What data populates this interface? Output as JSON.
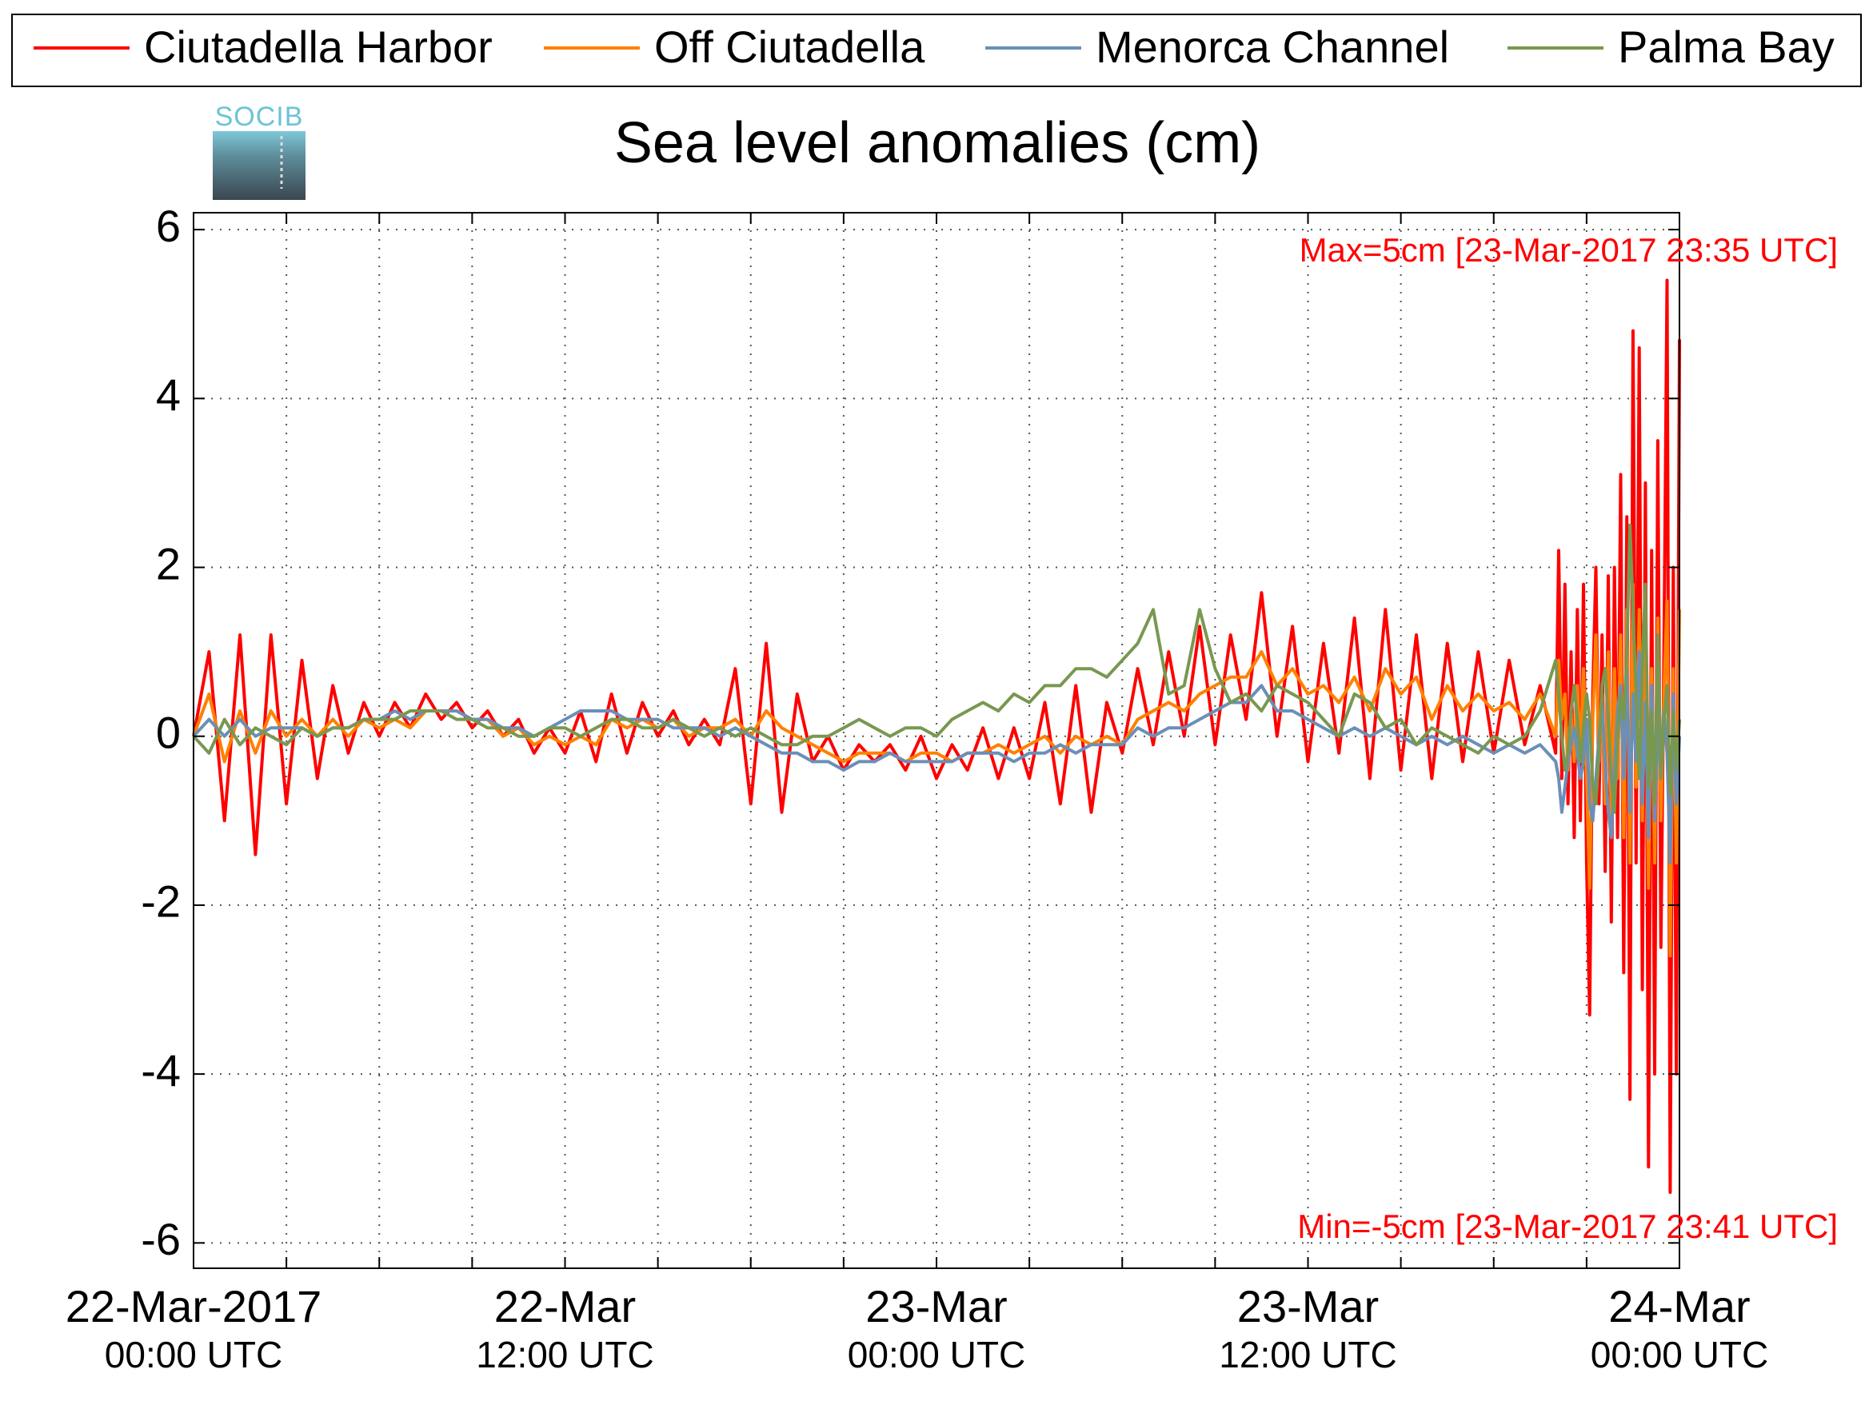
{
  "chart_data": {
    "type": "line",
    "title": "Sea level anomalies (cm)",
    "logo_text": "SOCIB",
    "annotations": [
      {
        "text": "Max=5cm [23-Mar-2017 23:35 UTC]",
        "color": "#ff0000",
        "corner": "top-right"
      },
      {
        "text": "Min=-5cm [23-Mar-2017 23:41 UTC]",
        "color": "#ff0000",
        "corner": "bottom-right"
      }
    ],
    "xlim": [
      0,
      48
    ],
    "ylim": [
      -6.3,
      6.2
    ],
    "xticks": [
      {
        "value": 0,
        "label": "22-Mar-2017",
        "sublabel": "00:00 UTC"
      },
      3,
      6,
      9,
      {
        "value": 12,
        "label": "22-Mar",
        "sublabel": "12:00 UTC"
      },
      15,
      18,
      21,
      {
        "value": 24,
        "label": "23-Mar",
        "sublabel": "00:00 UTC"
      },
      27,
      30,
      33,
      {
        "value": 36,
        "label": "23-Mar",
        "sublabel": "12:00 UTC"
      },
      39,
      42,
      45,
      {
        "value": 48,
        "label": "24-Mar",
        "sublabel": "00:00 UTC"
      }
    ],
    "yticks": [
      -6,
      -4,
      -2,
      0,
      2,
      4,
      6
    ],
    "grid": true,
    "legend": "top",
    "x": [
      0,
      0.5,
      1,
      1.5,
      2,
      2.5,
      3,
      3.5,
      4,
      4.5,
      5,
      5.5,
      6,
      6.5,
      7,
      7.5,
      8,
      8.5,
      9,
      9.5,
      10,
      10.5,
      11,
      11.5,
      12,
      12.5,
      13,
      13.5,
      14,
      14.5,
      15,
      15.5,
      16,
      16.5,
      17,
      17.5,
      18,
      18.5,
      19,
      19.5,
      20,
      20.5,
      21,
      21.5,
      22,
      22.5,
      23,
      23.5,
      24,
      24.5,
      25,
      25.5,
      26,
      26.5,
      27,
      27.5,
      28,
      28.5,
      29,
      29.5,
      30,
      30.5,
      31,
      31.5,
      32,
      32.5,
      33,
      33.5,
      34,
      34.5,
      35,
      35.5,
      36,
      36.5,
      37,
      37.5,
      38,
      38.5,
      39,
      39.5,
      40,
      40.5,
      41,
      41.5,
      42,
      42.5,
      43,
      43.5,
      44,
      44.1,
      44.2,
      44.3,
      44.4,
      44.5,
      44.6,
      44.7,
      44.8,
      44.9,
      45,
      45.1,
      45.2,
      45.3,
      45.4,
      45.5,
      45.6,
      45.7,
      45.8,
      45.9,
      46,
      46.1,
      46.2,
      46.3,
      46.4,
      46.5,
      46.6,
      46.7,
      46.8,
      46.9,
      47,
      47.1,
      47.2,
      47.3,
      47.4,
      47.5,
      47.6,
      47.7,
      47.8,
      47.9,
      48
    ],
    "series": [
      {
        "name": "Ciutadella Harbor",
        "color": "#ff0000",
        "values": [
          0,
          1.0,
          -1.0,
          1.2,
          -1.4,
          1.2,
          -0.8,
          0.9,
          -0.5,
          0.6,
          -0.2,
          0.4,
          0.0,
          0.4,
          0.1,
          0.5,
          0.2,
          0.4,
          0.1,
          0.3,
          0.0,
          0.2,
          -0.2,
          0.1,
          -0.2,
          0.3,
          -0.3,
          0.5,
          -0.2,
          0.4,
          0.0,
          0.3,
          -0.1,
          0.2,
          -0.1,
          0.8,
          -0.8,
          1.1,
          -0.9,
          0.5,
          -0.3,
          0.0,
          -0.4,
          -0.1,
          -0.3,
          -0.1,
          -0.4,
          0.0,
          -0.5,
          -0.1,
          -0.4,
          0.1,
          -0.5,
          0.1,
          -0.5,
          0.4,
          -0.8,
          0.6,
          -0.9,
          0.4,
          -0.2,
          0.8,
          -0.1,
          1.0,
          0.0,
          1.3,
          -0.1,
          1.2,
          0.2,
          1.7,
          0.0,
          1.3,
          -0.3,
          1.1,
          -0.2,
          1.4,
          -0.5,
          1.5,
          -0.4,
          1.2,
          -0.5,
          1.1,
          -0.3,
          1.0,
          -0.2,
          0.9,
          -0.1,
          0.6,
          -0.2,
          2.2,
          -0.5,
          1.8,
          -0.8,
          1.0,
          -1.2,
          1.5,
          -1.0,
          1.8,
          -1.5,
          -3.3,
          0.5,
          2.0,
          -0.8,
          1.2,
          -1.6,
          1.9,
          -2.2,
          2.0,
          -1.2,
          3.1,
          -2.8,
          2.6,
          -4.3,
          4.8,
          -1.5,
          4.6,
          -3.0,
          3.0,
          -5.1,
          2.2,
          -4.0,
          3.5,
          -2.5,
          1.0,
          5.4,
          -5.4,
          2.0,
          -4.0,
          4.7
        ]
      },
      {
        "name": "Off Ciutadella",
        "color": "#ff8000",
        "values": [
          0,
          0.5,
          -0.3,
          0.3,
          -0.2,
          0.3,
          0.0,
          0.2,
          0.0,
          0.2,
          0.0,
          0.2,
          0.1,
          0.2,
          0.1,
          0.3,
          0.3,
          0.3,
          0.2,
          0.2,
          0.0,
          0.1,
          -0.1,
          0.0,
          -0.1,
          0.0,
          -0.1,
          0.2,
          0.1,
          0.2,
          0.1,
          0.2,
          0.0,
          0.1,
          0.1,
          0.2,
          0.0,
          0.3,
          0.1,
          0.0,
          -0.1,
          -0.2,
          -0.3,
          -0.2,
          -0.2,
          -0.2,
          -0.3,
          -0.2,
          -0.2,
          -0.3,
          -0.2,
          -0.2,
          -0.1,
          -0.2,
          -0.1,
          0.0,
          -0.2,
          0.0,
          -0.1,
          0.0,
          -0.1,
          0.2,
          0.3,
          0.4,
          0.3,
          0.5,
          0.6,
          0.7,
          0.7,
          1.0,
          0.6,
          0.8,
          0.5,
          0.6,
          0.4,
          0.7,
          0.3,
          0.8,
          0.5,
          0.7,
          0.2,
          0.6,
          0.3,
          0.5,
          0.3,
          0.4,
          0.2,
          0.5,
          0.0,
          0.9,
          0.2,
          0.5,
          -0.4,
          0.3,
          -0.3,
          0.6,
          -0.2,
          0.8,
          -0.5,
          -1.8,
          0.2,
          1.2,
          -0.3,
          0.5,
          -0.8,
          1.0,
          -1.0,
          0.8,
          -0.5,
          1.2,
          -1.2,
          1.5,
          -1.5,
          1.8,
          -0.6,
          1.5,
          -1.0,
          1.2,
          -1.8,
          0.8,
          -1.5,
          1.4,
          -1.0,
          0.5,
          1.6,
          -2.6,
          0.8,
          -1.5,
          1.5
        ]
      },
      {
        "name": "Menorca Channel",
        "color": "#6a8fb8",
        "values": [
          0,
          0.2,
          0.0,
          0.2,
          0.0,
          0.1,
          0.1,
          0.1,
          0.0,
          0.1,
          0.1,
          0.2,
          0.2,
          0.3,
          0.2,
          0.3,
          0.3,
          0.3,
          0.2,
          0.2,
          0.1,
          0.1,
          0.0,
          0.1,
          0.2,
          0.3,
          0.3,
          0.3,
          0.2,
          0.2,
          0.2,
          0.1,
          0.1,
          0.1,
          0.0,
          0.1,
          0.0,
          -0.1,
          -0.2,
          -0.2,
          -0.3,
          -0.3,
          -0.4,
          -0.3,
          -0.3,
          -0.2,
          -0.3,
          -0.3,
          -0.3,
          -0.3,
          -0.2,
          -0.2,
          -0.2,
          -0.3,
          -0.2,
          -0.2,
          -0.1,
          -0.2,
          -0.1,
          -0.1,
          -0.1,
          0.1,
          0.0,
          0.1,
          0.1,
          0.2,
          0.3,
          0.4,
          0.4,
          0.6,
          0.3,
          0.3,
          0.2,
          0.1,
          0.0,
          0.1,
          0.0,
          0.1,
          0.0,
          -0.1,
          0.0,
          -0.1,
          0.0,
          -0.1,
          -0.2,
          -0.1,
          -0.2,
          -0.1,
          -0.3,
          -0.5,
          -0.9,
          -0.6,
          -0.3,
          -0.1,
          0.1,
          -0.2,
          -0.5,
          -0.3,
          0.2,
          -0.8,
          -1.0,
          -0.5,
          0.0,
          0.4,
          -0.3,
          -0.9,
          -1.2,
          -0.4,
          0.3,
          0.6,
          -0.5,
          0.8,
          -0.9,
          0.5,
          -0.3,
          1.0,
          -0.8,
          0.4,
          -1.2,
          0.6,
          -1.0,
          0.2,
          -0.5,
          0.3,
          -0.2,
          -1.5,
          0.5,
          -0.8,
          0.0
        ]
      },
      {
        "name": "Palma Bay",
        "color": "#789850",
        "values": [
          0,
          -0.2,
          0.2,
          -0.1,
          0.1,
          0.0,
          -0.1,
          0.1,
          0.0,
          0.1,
          0.1,
          0.2,
          0.2,
          0.2,
          0.3,
          0.3,
          0.3,
          0.2,
          0.2,
          0.1,
          0.1,
          0.0,
          0.0,
          0.1,
          0.1,
          0.0,
          0.1,
          0.2,
          0.2,
          0.1,
          0.1,
          0.2,
          0.1,
          0.0,
          0.1,
          0.0,
          0.1,
          0.0,
          -0.1,
          -0.1,
          0.0,
          0.0,
          0.1,
          0.2,
          0.1,
          0.0,
          0.1,
          0.1,
          0.0,
          0.2,
          0.3,
          0.4,
          0.3,
          0.5,
          0.4,
          0.6,
          0.6,
          0.8,
          0.8,
          0.7,
          0.9,
          1.1,
          1.5,
          0.5,
          0.6,
          1.5,
          0.8,
          0.4,
          0.5,
          0.3,
          0.6,
          0.5,
          0.4,
          0.2,
          0.0,
          0.5,
          0.4,
          0.1,
          0.2,
          -0.1,
          0.1,
          0.0,
          -0.1,
          -0.2,
          0.0,
          -0.1,
          0.0,
          0.3,
          0.9,
          0.5,
          0.0,
          -0.4,
          -0.2,
          0.3,
          0.6,
          0.2,
          -0.3,
          0.1,
          0.5,
          0.2,
          -0.6,
          -0.8,
          -0.2,
          0.6,
          0.8,
          0.2,
          -0.5,
          -0.9,
          0.0,
          0.5,
          0.2,
          1.0,
          2.5,
          1.5,
          0.5,
          -0.5,
          0.8,
          1.8,
          -0.6,
          0.3,
          -0.8,
          1.2,
          -0.5,
          0.2,
          0.6,
          -0.7,
          0.3,
          -0.4,
          0.2
        ]
      }
    ]
  }
}
